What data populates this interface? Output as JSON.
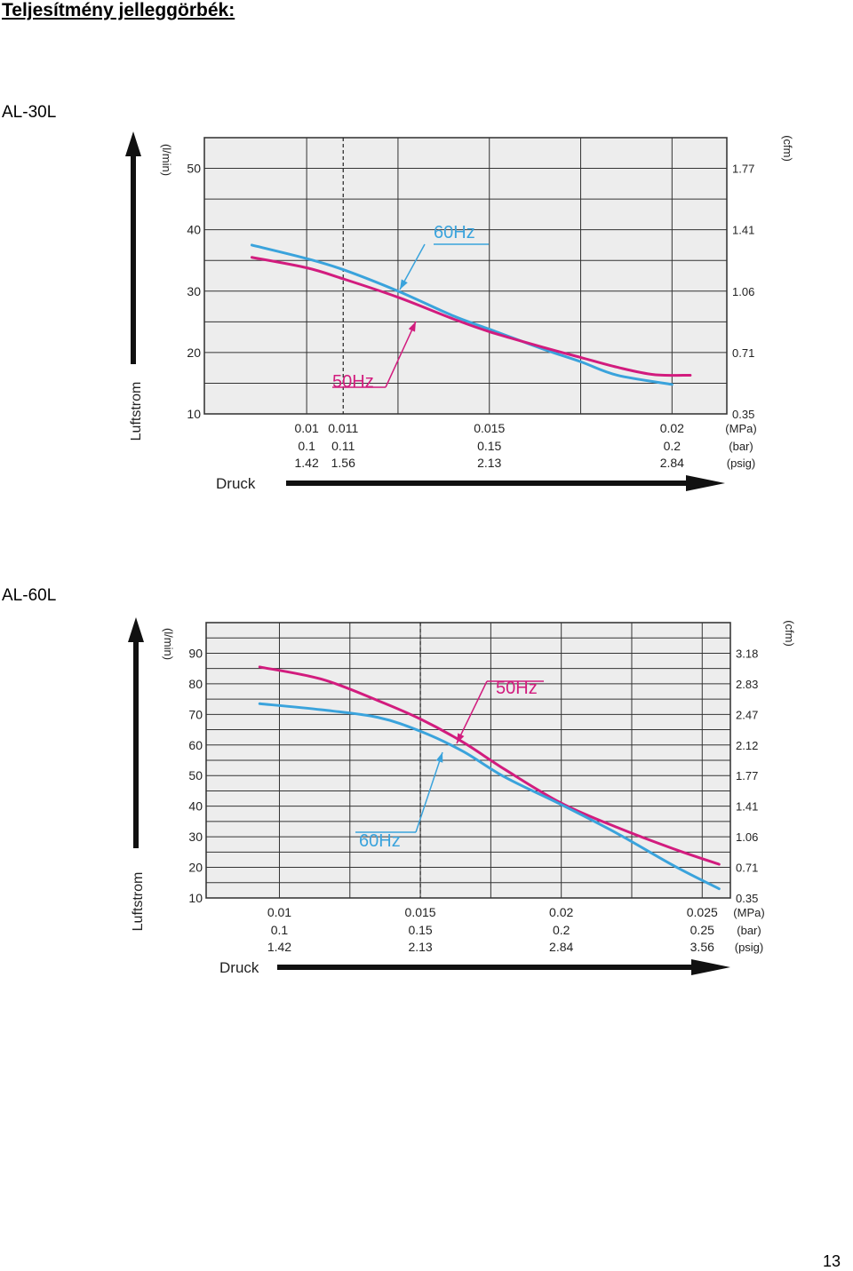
{
  "page": {
    "title": "Teljesítmény jelleggörbék:",
    "page_number": "13"
  },
  "chart_data": [
    {
      "type": "line",
      "model": "AL-30L",
      "ylabel": "Luftstrom",
      "xlabel": "Druck",
      "y_unit_left": "(l/min)",
      "y_unit_right": "(cfm)",
      "ylim": [
        10,
        55
      ],
      "y_ticks": [
        10,
        20,
        30,
        40,
        50
      ],
      "y_ticks_right": [
        "0.35",
        "0.71",
        "1.06",
        "1.41",
        "1.77"
      ],
      "xlim": [
        0.0072,
        0.0215
      ],
      "x_grid": [
        0.0072,
        0.01,
        0.0125,
        0.015,
        0.0175,
        0.02,
        0.0215
      ],
      "x_dashed": 0.011,
      "x_tick_rows": [
        {
          "unit": "(MPa)",
          "labels": [
            "0.01",
            "0.011",
            "0.015",
            "0.02"
          ]
        },
        {
          "unit": "(bar)",
          "labels": [
            "0.1",
            "0.11",
            "0.15",
            "0.2"
          ]
        },
        {
          "unit": "(psig)",
          "labels": [
            "1.42",
            "1.56",
            "2.13",
            "2.84"
          ]
        }
      ],
      "x_tick_positions": [
        0.01,
        0.011,
        0.015,
        0.02
      ],
      "series": [
        {
          "name": "60Hz",
          "color": "#3aa3dc",
          "x": [
            0.0085,
            0.01,
            0.011,
            0.0125,
            0.014,
            0.015,
            0.0165,
            0.0175,
            0.0185,
            0.02
          ],
          "y": [
            37.5,
            35.3,
            33.5,
            30,
            26,
            23.8,
            20.5,
            18.5,
            16.3,
            14.8
          ]
        },
        {
          "name": "50Hz",
          "color": "#d21c7e",
          "x": [
            0.0085,
            0.01,
            0.011,
            0.0125,
            0.014,
            0.015,
            0.0165,
            0.0175,
            0.0185,
            0.0195,
            0.0205
          ],
          "y": [
            35.5,
            33.8,
            32,
            29,
            25.5,
            23.4,
            20.8,
            19.2,
            17.6,
            16.4,
            16.3
          ]
        }
      ]
    },
    {
      "type": "line",
      "model": "AL-60L",
      "ylabel": "Luftstrom",
      "xlabel": "Druck",
      "y_unit_left": "(l/min)",
      "y_unit_right": "(cfm)",
      "ylim": [
        10,
        100
      ],
      "y_ticks": [
        10,
        20,
        30,
        40,
        50,
        60,
        70,
        80,
        90
      ],
      "y_ticks_right": [
        "0.35",
        "0.71",
        "1.06",
        "1.41",
        "1.77",
        "2.12",
        "2.47",
        "2.83",
        "3.18"
      ],
      "xlim": [
        0.0074,
        0.026
      ],
      "x_grid": [
        0.0074,
        0.01,
        0.0125,
        0.015,
        0.0175,
        0.02,
        0.0225,
        0.025,
        0.026
      ],
      "x_dashed": 0.015,
      "x_tick_rows": [
        {
          "unit": "(MPa)",
          "labels": [
            "0.01",
            "0.015",
            "0.02",
            "0.025"
          ]
        },
        {
          "unit": "(bar)",
          "labels": [
            "0.1",
            "0.15",
            "0.2",
            "0.25"
          ]
        },
        {
          "unit": "(psig)",
          "labels": [
            "1.42",
            "2.13",
            "2.84",
            "3.56"
          ]
        }
      ],
      "x_tick_positions": [
        0.01,
        0.015,
        0.02,
        0.025
      ],
      "series": [
        {
          "name": "50Hz",
          "color": "#d21c7e",
          "x": [
            0.0093,
            0.0115,
            0.0135,
            0.015,
            0.0165,
            0.018,
            0.02,
            0.022,
            0.024,
            0.0256
          ],
          "y": [
            85.5,
            81.5,
            74.5,
            68.5,
            61,
            52,
            41,
            33,
            26,
            21
          ]
        },
        {
          "name": "60Hz",
          "color": "#3aa3dc",
          "x": [
            0.0093,
            0.0115,
            0.0135,
            0.015,
            0.0165,
            0.018,
            0.02,
            0.022,
            0.024,
            0.0256
          ],
          "y": [
            73.5,
            71.5,
            69,
            64.5,
            58,
            49.5,
            40.5,
            31,
            20.5,
            13
          ]
        }
      ]
    }
  ]
}
